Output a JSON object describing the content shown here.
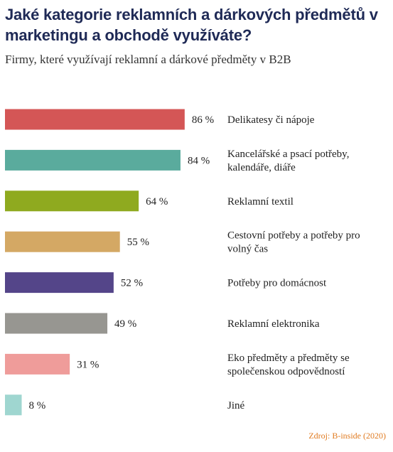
{
  "title": "Jaké kategorie reklamních a dárkových předmětů  v marketingu a obchodě využíváte?",
  "subtitle": "Firmy, které využívají reklamní a dárkové předměty v B2B",
  "source": "Zdroj: B-inside (2020)",
  "chart_data": {
    "type": "bar",
    "orientation": "horizontal",
    "unit": "%",
    "xlim": [
      0,
      100
    ],
    "grid": false,
    "categories": [
      "Delikatesy či nápoje",
      "Kancelářské a psací potřeby, kalendáře, diáře",
      "Reklamní textil",
      "Cestovní potřeby a potřeby pro volný čas",
      "Potřeby pro domácnost",
      "Reklamní elektronika",
      "Eko předměty a předměty se společenskou odpovědností",
      "Jiné"
    ],
    "label_lines": [
      [
        "Delikatesy či nápoje"
      ],
      [
        "Kancelářské a psací potřeby,",
        "kalendáře, diáře"
      ],
      [
        "Reklamní textil"
      ],
      [
        "Cestovní potřeby a potřeby pro",
        "volný čas"
      ],
      [
        "Potřeby pro domácnost"
      ],
      [
        "Reklamní elektronika"
      ],
      [
        "Eko předměty a předměty se",
        "společenskou odpovědností"
      ],
      [
        "Jiné"
      ]
    ],
    "values": [
      86,
      84,
      64,
      55,
      52,
      49,
      31,
      8
    ],
    "value_labels": [
      "86 %",
      "84 %",
      "64 %",
      "55 %",
      "52 %",
      "49 %",
      "31 %",
      "8 %"
    ],
    "colors": [
      "#d45656",
      "#5aab9d",
      "#8faa1f",
      "#d4a864",
      "#544589",
      "#979691",
      "#ef9c9a",
      "#9fd6d0"
    ]
  }
}
